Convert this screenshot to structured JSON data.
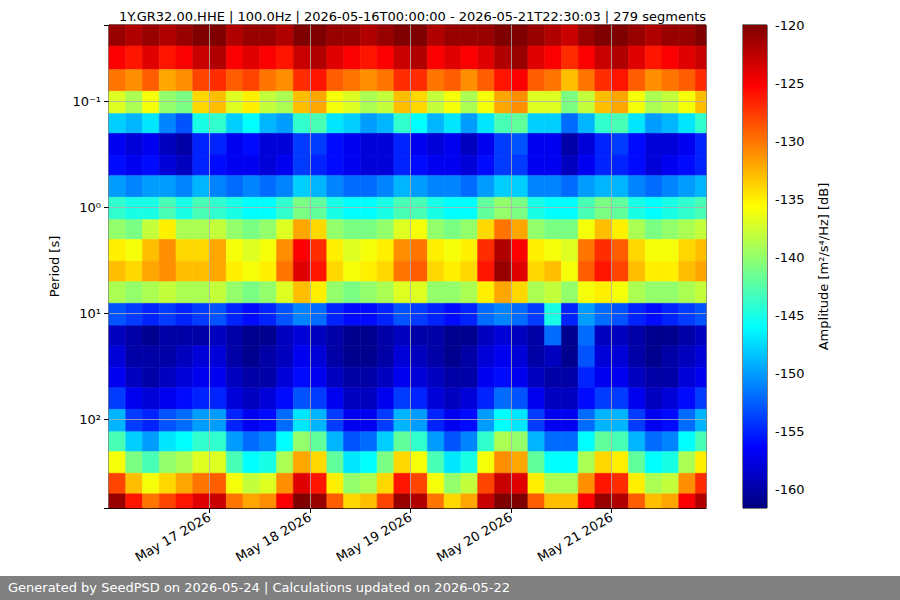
{
  "chart_data": {
    "type": "heatmap",
    "title": "1Y.GR32.00.HHE | 100.0Hz | 2026-05-16T00:00:00 - 2026-05-21T22:30:03 | 279 segments",
    "footer": "Generated by SeedPSD on 2026-05-24 | Calculations updated on 2026-05-22",
    "ylabel": "Period [s]",
    "colorbar_label": "Amplitude [m²/s⁴/Hz] [dB]",
    "log": "y",
    "grid": true,
    "xlim": [
      "2026-05-16T00:00:00",
      "2026-05-21T22:30:03"
    ],
    "xticks": [
      {
        "value": "2026-05-17T00:00:00",
        "label": "May 17 2026"
      },
      {
        "value": "2026-05-18T00:00:00",
        "label": "May 18 2026"
      },
      {
        "value": "2026-05-19T00:00:00",
        "label": "May 19 2026"
      },
      {
        "value": "2026-05-20T00:00:00",
        "label": "May 20 2026"
      },
      {
        "value": "2026-05-21T00:00:00",
        "label": "May 21 2026"
      }
    ],
    "ylim": [
      0.019,
      680
    ],
    "yticks": [
      {
        "value": 0.1,
        "label": "10⁻¹"
      },
      {
        "value": 1,
        "label": "10⁰"
      },
      {
        "value": 10,
        "label": "10¹"
      },
      {
        "value": 100,
        "label": "10²"
      }
    ],
    "colorbar_range": [
      -161.6,
      -120
    ],
    "colorbar_ticks": [
      -160,
      -155,
      -150,
      -145,
      -140,
      -135,
      -130,
      -125,
      -120
    ],
    "x_bins": [
      "2026-05-16T00:00:00",
      "2026-05-16T04:00:00",
      "2026-05-16T08:00:00",
      "2026-05-16T12:00:00",
      "2026-05-16T16:00:00",
      "2026-05-16T20:00:00",
      "2026-05-17T00:00:00",
      "2026-05-17T04:00:00",
      "2026-05-17T08:00:00",
      "2026-05-17T12:00:00",
      "2026-05-17T16:00:00",
      "2026-05-17T20:00:00",
      "2026-05-18T00:00:00",
      "2026-05-18T04:00:00",
      "2026-05-18T08:00:00",
      "2026-05-18T12:00:00",
      "2026-05-18T16:00:00",
      "2026-05-18T20:00:00",
      "2026-05-19T00:00:00",
      "2026-05-19T04:00:00",
      "2026-05-19T08:00:00",
      "2026-05-19T12:00:00",
      "2026-05-19T16:00:00",
      "2026-05-19T20:00:00",
      "2026-05-20T00:00:00",
      "2026-05-20T04:00:00",
      "2026-05-20T08:00:00",
      "2026-05-20T12:00:00",
      "2026-05-20T16:00:00",
      "2026-05-20T20:00:00",
      "2026-05-21T00:00:00",
      "2026-05-21T04:00:00",
      "2026-05-21T08:00:00",
      "2026-05-21T12:00:00",
      "2026-05-21T16:00:00",
      "2026-05-21T20:00:00",
      "2026-05-22T00:00:00"
    ],
    "y_bins": [
      0.019,
      0.03,
      0.05,
      0.08,
      0.13,
      0.2,
      0.32,
      0.5,
      0.8,
      1.3,
      2,
      3.2,
      5,
      8,
      13,
      20,
      32,
      50,
      80,
      130,
      200,
      320,
      500,
      680
    ],
    "cells": [
      [
        -121,
        -125,
        -130,
        -137,
        -148,
        -157,
        -156,
        -150,
        -144,
        -140,
        -135,
        -133,
        -139,
        -153,
        -159,
        -158,
        -157,
        -154,
        -149,
        -143,
        -136,
        -128,
        -121
      ],
      [
        -122,
        -126,
        -131,
        -139,
        -149,
        -158,
        -157,
        -151,
        -145,
        -141,
        -136,
        -134,
        -140,
        -154,
        -160,
        -160,
        -159,
        -157,
        -154,
        -148,
        -141,
        -133,
        -126
      ],
      [
        -121,
        -124,
        -129,
        -136,
        -147,
        -157,
        -156,
        -150,
        -145,
        -138,
        -133,
        -132,
        -139,
        -155,
        -161,
        -160,
        -160,
        -158,
        -155,
        -150,
        -143,
        -136,
        -130
      ],
      [
        -122,
        -126,
        -132,
        -140,
        -151,
        -159,
        -158,
        -150,
        -143,
        -135,
        -131,
        -131,
        -138,
        -154,
        -160,
        -160,
        -159,
        -157,
        -153,
        -147,
        -140,
        -134,
        -128
      ],
      [
        -121,
        -125,
        -131,
        -141,
        -153,
        -160,
        -159,
        -151,
        -145,
        -139,
        -134,
        -133,
        -139,
        -155,
        -160,
        -159,
        -158,
        -156,
        -152,
        -146,
        -139,
        -132,
        -126
      ],
      [
        -120,
        -123,
        -128,
        -134,
        -145,
        -155,
        -155,
        -149,
        -143,
        -139,
        -134,
        -133,
        -139,
        -154,
        -160,
        -158,
        -157,
        -155,
        -150,
        -144,
        -137,
        -130,
        -124
      ],
      [
        -120,
        -122,
        -127,
        -133,
        -144,
        -155,
        -156,
        -151,
        -144,
        -138,
        -132,
        -132,
        -138,
        -153,
        -159,
        -158,
        -157,
        -155,
        -150,
        -144,
        -137,
        -129,
        -123
      ],
      [
        -122,
        -125,
        -129,
        -137,
        -148,
        -157,
        -157,
        -152,
        -145,
        -140,
        -136,
        -135,
        -140,
        -155,
        -160,
        -160,
        -159,
        -158,
        -155,
        -150,
        -143,
        -136,
        -130
      ],
      [
        -121,
        -124,
        -128,
        -135,
        -146,
        -156,
        -157,
        -151,
        -146,
        -141,
        -137,
        -136,
        -141,
        -156,
        -161,
        -161,
        -160,
        -159,
        -157,
        -152,
        -146,
        -138,
        -132
      ],
      [
        -121,
        -125,
        -130,
        -138,
        -149,
        -158,
        -158,
        -152,
        -146,
        -140,
        -136,
        -135,
        -140,
        -155,
        -161,
        -160,
        -160,
        -158,
        -156,
        -151,
        -145,
        -137,
        -131
      ],
      [
        -122,
        -126,
        -131,
        -139,
        -150,
        -158,
        -157,
        -151,
        -144,
        -137,
        -131,
        -130,
        -137,
        -153,
        -159,
        -159,
        -158,
        -156,
        -152,
        -146,
        -139,
        -131,
        -125
      ],
      [
        -120,
        -123,
        -127,
        -133,
        -144,
        -154,
        -154,
        -148,
        -141,
        -132,
        -125,
        -124,
        -133,
        -151,
        -158,
        -157,
        -156,
        -153,
        -147,
        -140,
        -132,
        -124,
        -120
      ],
      [
        -120,
        -122,
        -126,
        -132,
        -143,
        -154,
        -155,
        -149,
        -142,
        -134,
        -127,
        -126,
        -135,
        -152,
        -159,
        -158,
        -157,
        -154,
        -149,
        -142,
        -134,
        -126,
        -121
      ],
      [
        -121,
        -124,
        -129,
        -136,
        -147,
        -156,
        -156,
        -151,
        -145,
        -140,
        -135,
        -134,
        -140,
        -155,
        -160,
        -160,
        -159,
        -157,
        -154,
        -149,
        -142,
        -135,
        -129
      ],
      [
        -121,
        -125,
        -130,
        -137,
        -148,
        -157,
        -157,
        -152,
        -146,
        -141,
        -137,
        -136,
        -141,
        -156,
        -161,
        -161,
        -160,
        -159,
        -157,
        -153,
        -147,
        -140,
        -134
      ],
      [
        -122,
        -126,
        -131,
        -139,
        -150,
        -158,
        -158,
        -152,
        -146,
        -141,
        -136,
        -135,
        -140,
        -156,
        -161,
        -161,
        -160,
        -159,
        -157,
        -152,
        -146,
        -139,
        -133
      ],
      [
        -121,
        -125,
        -130,
        -138,
        -149,
        -158,
        -158,
        -151,
        -145,
        -140,
        -135,
        -134,
        -139,
        -155,
        -160,
        -160,
        -159,
        -157,
        -154,
        -148,
        -141,
        -134,
        -128
      ],
      [
        -120,
        -123,
        -127,
        -133,
        -144,
        -155,
        -155,
        -149,
        -143,
        -137,
        -131,
        -130,
        -137,
        -153,
        -159,
        -158,
        -157,
        -154,
        -149,
        -142,
        -134,
        -126,
        -121
      ],
      [
        -120,
        -122,
        -127,
        -134,
        -146,
        -157,
        -156,
        -150,
        -143,
        -136,
        -130,
        -129,
        -137,
        -154,
        -160,
        -159,
        -158,
        -155,
        -150,
        -144,
        -136,
        -128,
        -122
      ],
      [
        -122,
        -125,
        -130,
        -138,
        -149,
        -158,
        -157,
        -151,
        -145,
        -140,
        -135,
        -134,
        -140,
        -155,
        -160,
        -160,
        -159,
        -158,
        -155,
        -150,
        -143,
        -136,
        -130
      ],
      [
        -121,
        -124,
        -129,
        -136,
        -147,
        -157,
        -157,
        -151,
        -146,
        -141,
        -136,
        -135,
        -140,
        -156,
        -161,
        -161,
        -160,
        -159,
        -157,
        -153,
        -147,
        -140,
        -134
      ],
      [
        -121,
        -125,
        -131,
        -139,
        -150,
        -159,
        -158,
        -152,
        -146,
        -140,
        -135,
        -134,
        -139,
        -155,
        -161,
        -160,
        -160,
        -158,
        -156,
        -151,
        -145,
        -138,
        -132
      ],
      [
        -121,
        -124,
        -129,
        -136,
        -147,
        -157,
        -156,
        -150,
        -142,
        -134,
        -127,
        -126,
        -135,
        -152,
        -159,
        -158,
        -157,
        -155,
        -150,
        -144,
        -136,
        -128,
        -123
      ],
      [
        -120,
        -122,
        -126,
        -132,
        -143,
        -154,
        -154,
        -148,
        -140,
        -130,
        -122,
        -121,
        -132,
        -151,
        -158,
        -157,
        -156,
        -152,
        -146,
        -139,
        -131,
        -123,
        -120
      ],
      [
        -120,
        -121,
        -125,
        -131,
        -142,
        -153,
        -154,
        -148,
        -141,
        -132,
        -125,
        -124,
        -134,
        -152,
        -159,
        -158,
        -157,
        -153,
        -147,
        -140,
        -132,
        -124,
        -120
      ],
      [
        -121,
        -124,
        -129,
        -137,
        -148,
        -157,
        -157,
        -151,
        -145,
        -140,
        -135,
        -134,
        -139,
        -154,
        -160,
        -160,
        -159,
        -157,
        -154,
        -149,
        -142,
        -135,
        -129
      ],
      [
        -122,
        -125,
        -130,
        -137,
        -148,
        -157,
        -157,
        -151,
        -146,
        -141,
        -136,
        -133,
        -138,
        -145,
        -152,
        -159,
        -160,
        -159,
        -157,
        -152,
        -146,
        -139,
        -133
      ],
      [
        -123,
        -127,
        -133,
        -141,
        -152,
        -160,
        -159,
        -152,
        -146,
        -141,
        -137,
        -136,
        -140,
        -155,
        -161,
        -161,
        -160,
        -159,
        -157,
        -152,
        -146,
        -139,
        -133
      ],
      [
        -121,
        -125,
        -130,
        -138,
        -149,
        -158,
        -157,
        -150,
        -143,
        -136,
        -130,
        -129,
        -136,
        -150,
        -152,
        -153,
        -155,
        -156,
        -152,
        -146,
        -139,
        -131,
        -125
      ],
      [
        -120,
        -123,
        -127,
        -133,
        -144,
        -155,
        -155,
        -149,
        -141,
        -133,
        -127,
        -126,
        -135,
        -152,
        -159,
        -158,
        -157,
        -154,
        -149,
        -142,
        -134,
        -126,
        -121
      ],
      [
        -120,
        -122,
        -126,
        -132,
        -143,
        -154,
        -155,
        -149,
        -142,
        -135,
        -129,
        -128,
        -136,
        -153,
        -159,
        -158,
        -157,
        -154,
        -149,
        -143,
        -135,
        -127,
        -122
      ],
      [
        -121,
        -124,
        -129,
        -136,
        -147,
        -156,
        -156,
        -151,
        -145,
        -139,
        -134,
        -133,
        -139,
        -155,
        -160,
        -160,
        -159,
        -157,
        -154,
        -149,
        -142,
        -135,
        -129
      ],
      [
        -122,
        -126,
        -131,
        -139,
        -150,
        -158,
        -158,
        -152,
        -146,
        -141,
        -136,
        -135,
        -140,
        -156,
        -161,
        -161,
        -160,
        -159,
        -157,
        -152,
        -146,
        -139,
        -133
      ],
      [
        -121,
        -125,
        -130,
        -138,
        -149,
        -158,
        -157,
        -151,
        -145,
        -140,
        -136,
        -135,
        -140,
        -155,
        -161,
        -160,
        -160,
        -158,
        -156,
        -151,
        -145,
        -138,
        -132
      ],
      [
        -121,
        -124,
        -129,
        -136,
        -147,
        -157,
        -156,
        -150,
        -144,
        -139,
        -134,
        -133,
        -139,
        -154,
        -160,
        -159,
        -158,
        -156,
        -152,
        -146,
        -139,
        -131,
        -125
      ],
      [
        -120,
        -123,
        -127,
        -133,
        -144,
        -155,
        -155,
        -149,
        -143,
        -138,
        -133,
        -132,
        -138,
        -153,
        -159,
        -158,
        -157,
        -154,
        -149,
        -143,
        -135,
        -127,
        -122
      ]
    ]
  }
}
